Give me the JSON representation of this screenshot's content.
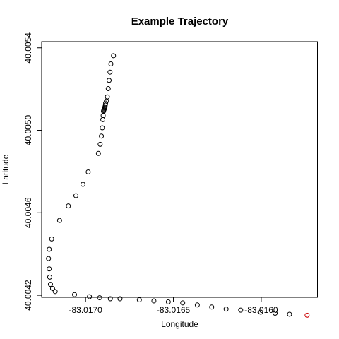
{
  "chart_data": {
    "type": "scatter",
    "title": "Example Trajectory",
    "xlabel": "Longitude",
    "ylabel": "Latitude",
    "xlim": [
      -83.01725,
      -83.01568
    ],
    "ylim": [
      40.00419,
      40.00543
    ],
    "x_ticks": [
      {
        "value": -83.017,
        "label": "-83.0170"
      },
      {
        "value": -83.0165,
        "label": "-83.0165"
      },
      {
        "value": -83.016,
        "label": "-83.0160"
      }
    ],
    "y_ticks": [
      {
        "value": 40.0042,
        "label": "40.0042"
      },
      {
        "value": 40.0046,
        "label": "40.0046"
      },
      {
        "value": 40.005,
        "label": "40.0050"
      },
      {
        "value": 40.0054,
        "label": "40.0054"
      }
    ],
    "grid": false,
    "point_style": "open-circle",
    "point_color": "#000000",
    "highlight_color": "#cc0000",
    "series": [
      {
        "x": [
          -83.016841,
          -83.016856,
          -83.016861,
          -83.016866,
          -83.016871,
          -83.016876,
          -83.016881,
          -83.016886,
          -83.016888,
          -83.016889,
          -83.01689,
          -83.016891,
          -83.016893,
          -83.016895,
          -83.016897,
          -83.016898,
          -83.0169,
          -83.016902,
          -83.016905,
          -83.01691,
          -83.016917,
          -83.016927,
          -83.016985,
          -83.017015,
          -83.017055,
          -83.017098,
          -83.017148,
          -83.017193,
          -83.017207,
          -83.017211,
          -83.017207,
          -83.017204,
          -83.0172,
          -83.017188,
          -83.017173,
          -83.017063,
          -83.016978,
          -83.01692,
          -83.016859,
          -83.016804,
          -83.016694,
          -83.016611,
          -83.016529,
          -83.016447,
          -83.016364,
          -83.016282,
          -83.0162,
          -83.016117,
          -83.016003,
          -83.015921,
          -83.015839,
          -83.015739
        ],
        "y": [
          40.005362,
          40.005322,
          40.005282,
          40.005242,
          40.005202,
          40.005162,
          40.005142,
          40.005132,
          40.005122,
          40.005114,
          40.005112,
          40.005108,
          40.005104,
          40.0051,
          40.005096,
          40.005092,
          40.005072,
          40.005052,
          40.005012,
          40.004972,
          40.004932,
          40.004888,
          40.004798,
          40.004738,
          40.004683,
          40.004633,
          40.004563,
          40.004473,
          40.004423,
          40.004378,
          40.004328,
          40.004288,
          40.004253,
          40.004233,
          40.004218,
          40.004203,
          40.004193,
          40.004188,
          40.004183,
          40.004183,
          40.004178,
          40.004173,
          40.004168,
          40.004163,
          40.004153,
          40.004143,
          40.004133,
          40.004128,
          40.004118,
          40.004113,
          40.004108,
          40.004103
        ],
        "highlight_index": 51
      }
    ]
  }
}
